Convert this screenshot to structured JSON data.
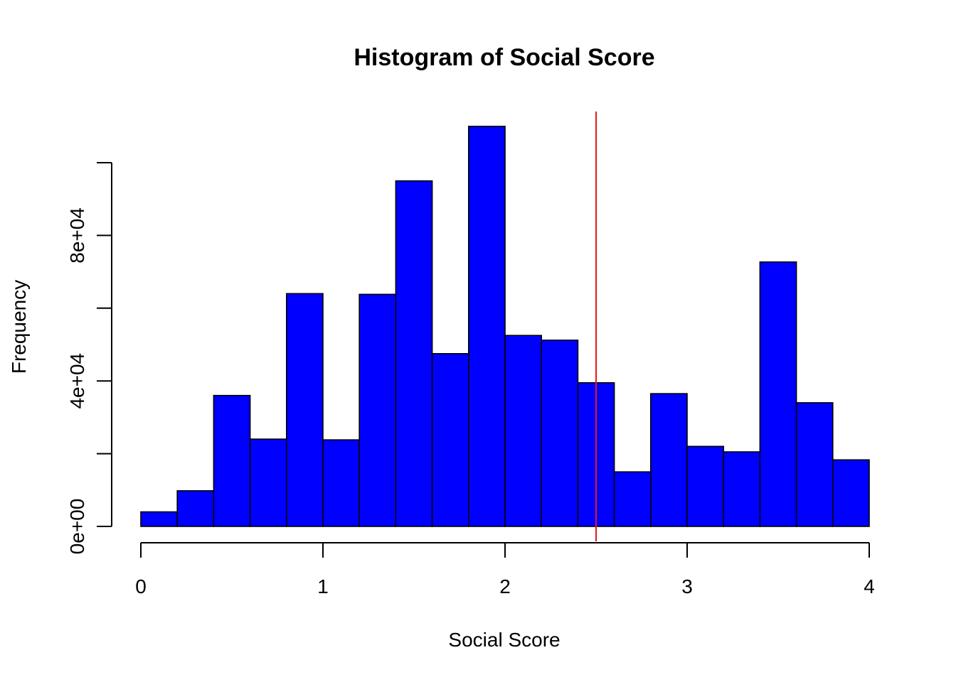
{
  "chart_data": {
    "type": "bar",
    "title": "Histogram of Social Score",
    "xlabel": "Social Score",
    "ylabel": "Frequency",
    "bin_edges": [
      0,
      0.2,
      0.4,
      0.6,
      0.8,
      1.0,
      1.2,
      1.4,
      1.6,
      1.8,
      2.0,
      2.2,
      2.4,
      2.6,
      2.8,
      3.0,
      3.2,
      3.4,
      3.6,
      3.8,
      4.0
    ],
    "values": [
      4000,
      9800,
      36000,
      24000,
      64000,
      23800,
      63800,
      95000,
      47500,
      110000,
      52500,
      51200,
      39500,
      15000,
      36500,
      22000,
      20500,
      72700,
      34000,
      18300
    ],
    "xlim": [
      0,
      4
    ],
    "ylim": [
      0,
      100000
    ],
    "x_ticks": [
      0,
      1,
      2,
      3,
      4
    ],
    "x_tick_labels": [
      "0",
      "1",
      "2",
      "3",
      "4"
    ],
    "y_ticks": [
      0,
      20000,
      40000,
      60000,
      80000,
      100000
    ],
    "y_tick_labels": [
      "0e+00",
      "",
      "4e+04",
      "",
      "8e+04",
      ""
    ],
    "bar_color": "#0000ff",
    "bar_edge_color": "#000000",
    "reference_line": {
      "x": 2.5,
      "color": "#e31a1c"
    },
    "grid": false,
    "legend": "none"
  }
}
